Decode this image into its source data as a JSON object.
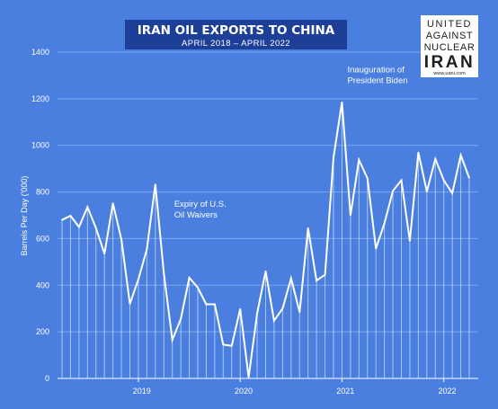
{
  "chart_data": {
    "type": "line",
    "title": "IRAN OIL EXPORTS TO CHINA",
    "subtitle": "APRIL 2018 – APRIL 2022",
    "xlabel": "",
    "ylabel": "Barrels Per Day ('000)",
    "ylim": [
      0,
      1400
    ],
    "yticks": [
      0,
      200,
      400,
      600,
      800,
      1000,
      1200,
      1400
    ],
    "x_start": "2018-04",
    "x_end": "2022-04",
    "xtick_labels": [
      "2019",
      "2020",
      "2021",
      "2022"
    ],
    "xticks": [
      "2019-01",
      "2020-01",
      "2021-01",
      "2022-01"
    ],
    "grid": true,
    "drop_lines": true,
    "months": [
      "2018-04",
      "2018-05",
      "2018-06",
      "2018-07",
      "2018-08",
      "2018-09",
      "2018-10",
      "2018-11",
      "2018-12",
      "2019-01",
      "2019-02",
      "2019-03",
      "2019-04",
      "2019-05",
      "2019-06",
      "2019-07",
      "2019-08",
      "2019-09",
      "2019-10",
      "2019-11",
      "2019-12",
      "2020-01",
      "2020-02",
      "2020-03",
      "2020-04",
      "2020-05",
      "2020-06",
      "2020-07",
      "2020-08",
      "2020-09",
      "2020-10",
      "2020-11",
      "2020-12",
      "2021-01",
      "2021-02",
      "2021-03",
      "2021-04",
      "2021-05",
      "2021-06",
      "2021-07",
      "2021-08",
      "2021-09",
      "2021-10",
      "2021-11",
      "2021-12",
      "2022-01",
      "2022-02",
      "2022-03",
      "2022-04"
    ],
    "series": [
      {
        "values": [
          680,
          698,
          650,
          735,
          645,
          535,
          752,
          595,
          320,
          425,
          555,
          833,
          450,
          165,
          255,
          432,
          390,
          318,
          318,
          145,
          140,
          298,
          5,
          280,
          460,
          248,
          300,
          430,
          285,
          645,
          420,
          445,
          948,
          1185,
          700,
          938,
          858,
          557,
          665,
          805,
          850,
          590,
          970,
          802,
          942,
          850,
          795,
          958,
          860
        ]
      }
    ],
    "annotations": [
      {
        "text": [
          "Expiry of U.S.",
          "Oil Waivers"
        ],
        "month": "2019-05"
      },
      {
        "text": [
          "Inauguration of",
          "President Biden"
        ],
        "month": "2021-01"
      }
    ],
    "colors": {
      "background": "#4a7fe0",
      "line": "#ffffff",
      "grid": "#7ea6ec",
      "title_box": "#1d3f97",
      "logo_bg": "#ffffff",
      "logo_text": "#1e1e1e"
    }
  },
  "logo": {
    "lines": [
      "UNITED",
      "AGAINST",
      "NUCLEAR",
      "IRAN"
    ],
    "url": "www.uani.com"
  }
}
